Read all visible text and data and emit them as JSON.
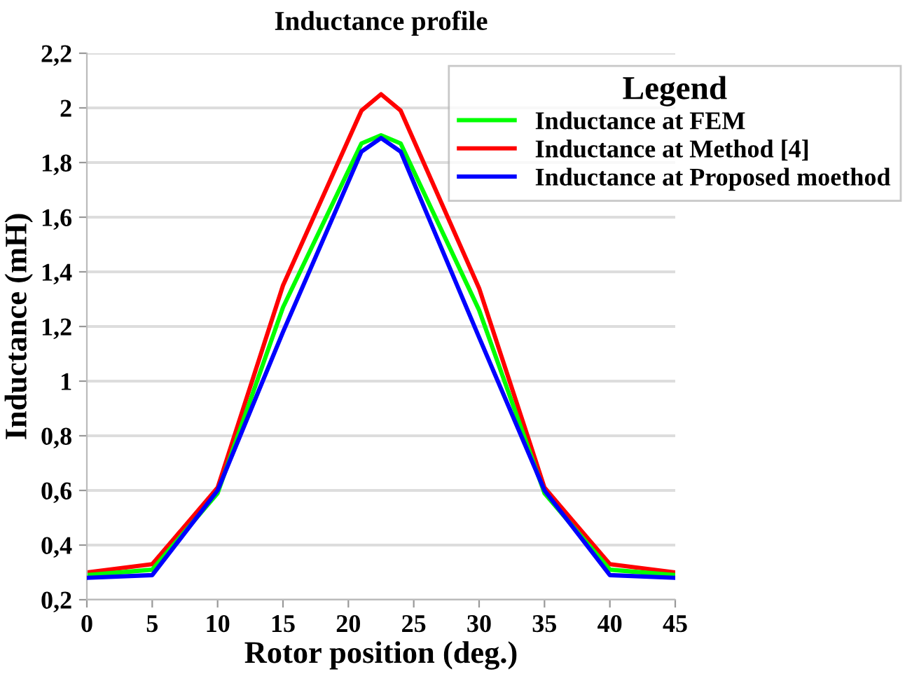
{
  "chart_data": {
    "type": "line",
    "title": "Inductance profile",
    "xlabel": "Rotor position (deg.)",
    "ylabel": "Inductance (mH)",
    "legend_title": "Legend",
    "legend": "top right",
    "grid": "y",
    "marker": "none",
    "line_style": "solid",
    "x": [
      0,
      5,
      10,
      15,
      21,
      22.5,
      24,
      30,
      35,
      40,
      45
    ],
    "series": [
      {
        "name": "Inductance at FEM",
        "color": "#00ff00",
        "values": [
          0.29,
          0.31,
          0.59,
          1.27,
          1.87,
          1.9,
          1.87,
          1.26,
          0.59,
          0.31,
          0.29
        ]
      },
      {
        "name": "Inductance at Method [4]",
        "color": "#ff0000",
        "values": [
          0.3,
          0.33,
          0.61,
          1.35,
          1.99,
          2.05,
          1.99,
          1.34,
          0.61,
          0.33,
          0.3
        ]
      },
      {
        "name": "Inductance at Proposed moethod",
        "color": "#0000ff",
        "values": [
          0.28,
          0.29,
          0.6,
          1.18,
          1.84,
          1.89,
          1.84,
          1.16,
          0.6,
          0.29,
          0.28
        ]
      }
    ],
    "xlim": [
      0,
      45
    ],
    "xticks": [
      0,
      5,
      10,
      15,
      20,
      25,
      30,
      35,
      40,
      45
    ],
    "ylim": [
      0.2,
      2.2
    ],
    "yticks": [
      {
        "value": 0.2,
        "label": "0,2"
      },
      {
        "value": 0.4,
        "label": "0,4"
      },
      {
        "value": 0.6,
        "label": "0,6"
      },
      {
        "value": 0.8,
        "label": "0,8"
      },
      {
        "value": 1,
        "label": "1"
      },
      {
        "value": 1.2,
        "label": "1,2"
      },
      {
        "value": 1.4,
        "label": "1,4"
      },
      {
        "value": 1.6,
        "label": "1,6"
      },
      {
        "value": 1.8,
        "label": "1,8"
      },
      {
        "value": 2,
        "label": "2"
      },
      {
        "value": 2.2,
        "label": "2,2"
      }
    ]
  }
}
